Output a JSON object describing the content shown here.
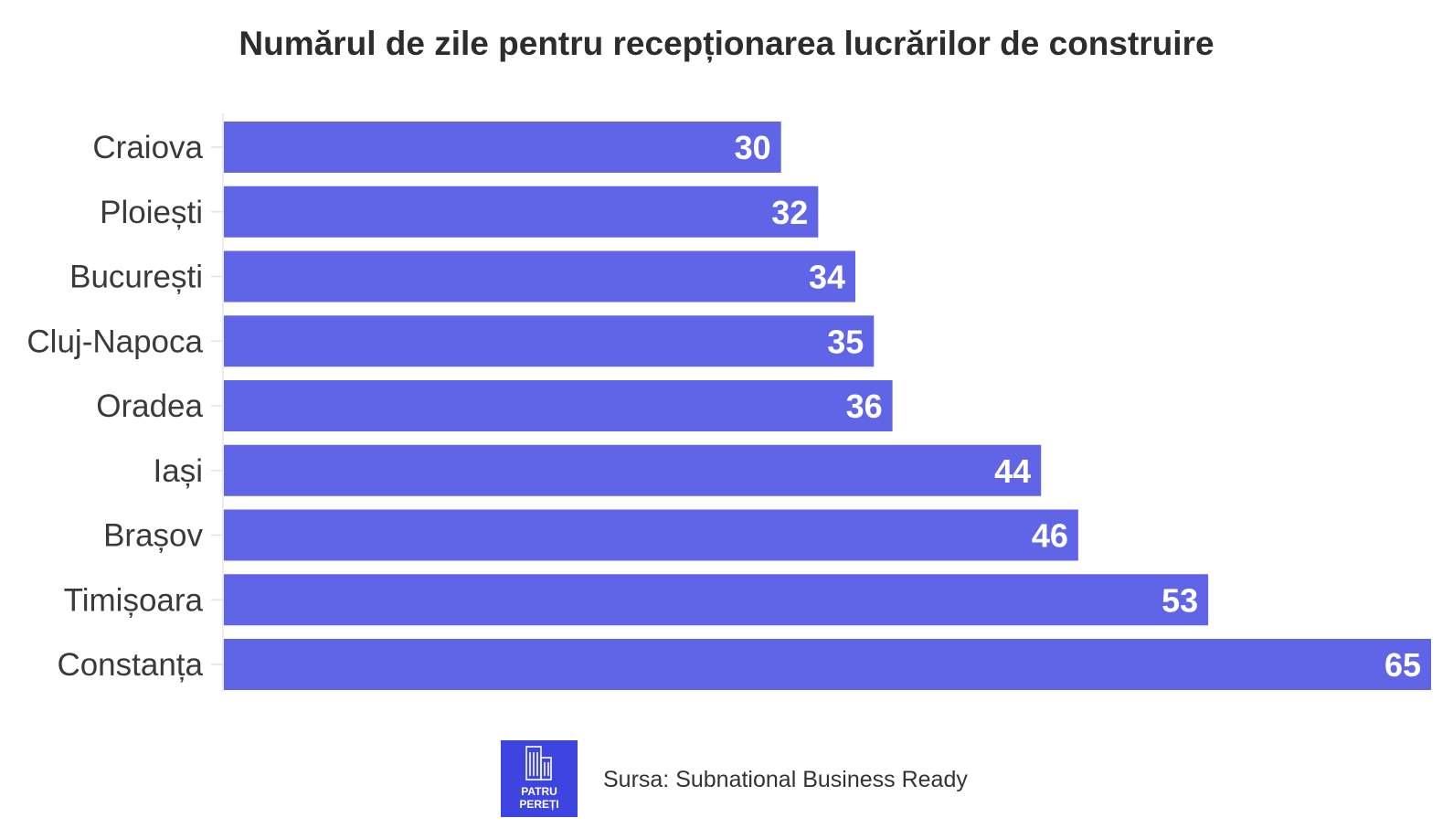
{
  "chart_data": {
    "type": "bar",
    "orientation": "horizontal",
    "title": "Numărul de zile pentru recepționarea lucrărilor de construire",
    "categories": [
      "Craiova",
      "Ploiești",
      "București",
      "Cluj-Napoca",
      "Oradea",
      "Iași",
      "Brașov",
      "Timișoara",
      "Constanța"
    ],
    "values": [
      30,
      32,
      34,
      35,
      36,
      44,
      46,
      53,
      65
    ],
    "xlim": [
      0,
      65
    ],
    "xlabel": "",
    "ylabel": "",
    "grid": false,
    "data_labels": "inside-end",
    "bar_color": "#6065e8",
    "label_color": "#ffffff"
  },
  "footer": {
    "source": "Sursa: Subnational Business Ready",
    "logo": {
      "line1": "PATRU",
      "line2": "PEREȚI",
      "icon": "building-icon",
      "color": "#3d44e0"
    }
  }
}
